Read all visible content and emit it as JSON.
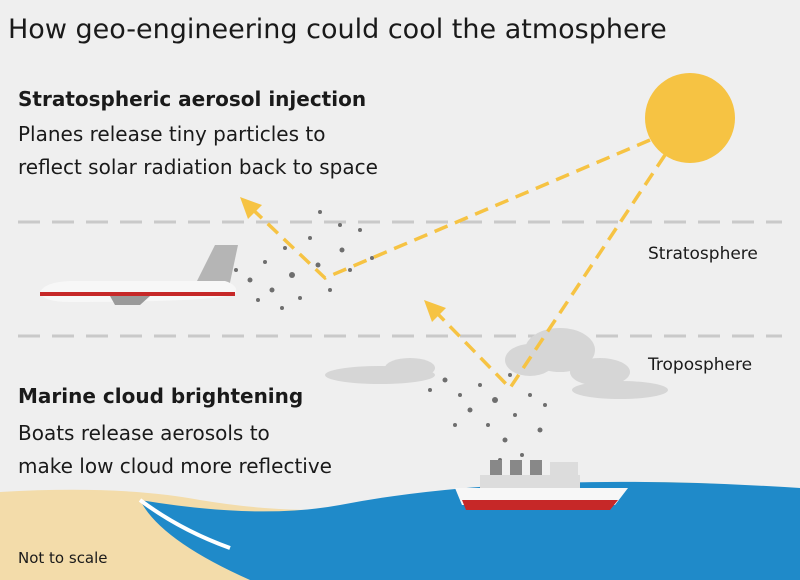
{
  "title": "How geo-engineering could cool the atmosphere",
  "stratospheric": {
    "heading": "Stratospheric aerosol injection",
    "body": [
      "Planes release tiny particles to",
      "reflect solar radiation back to space"
    ]
  },
  "marine": {
    "heading": "Marine cloud brightening",
    "body": [
      "Boats release aerosols to",
      "make low cloud more reflective"
    ]
  },
  "layers": {
    "stratosphere": "Stratosphere",
    "troposphere": "Troposphere"
  },
  "footnote": "Not to scale"
}
